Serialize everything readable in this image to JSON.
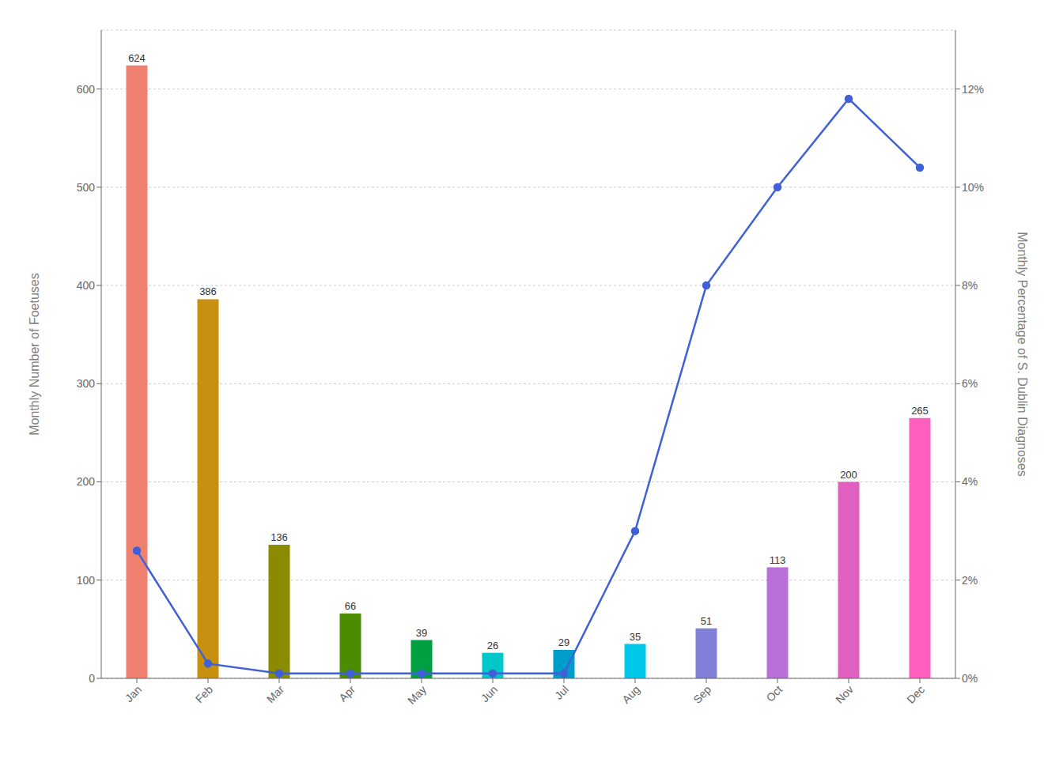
{
  "chart_data": {
    "type": "bar",
    "categories": [
      "Jan",
      "Feb",
      "Mar",
      "Apr",
      "May",
      "Jun",
      "Jul",
      "Aug",
      "Sep",
      "Oct",
      "Nov",
      "Dec"
    ],
    "ylabel": "Monthly Number of Foetuses",
    "y2label": "Monthly Percentage of S. Dublin Diagnoses",
    "ylim": [
      0,
      660
    ],
    "yticks": [
      0,
      100,
      200,
      300,
      400,
      500,
      600
    ],
    "y2lim": [
      0,
      0.132
    ],
    "y2ticks": [
      {
        "value": 0,
        "label": "0%"
      },
      {
        "value": 0.02,
        "label": "2%"
      },
      {
        "value": 0.04,
        "label": "4%"
      },
      {
        "value": 0.06,
        "label": "6%"
      },
      {
        "value": 0.08,
        "label": "8%"
      },
      {
        "value": 0.1,
        "label": "10%"
      },
      {
        "value": 0.12,
        "label": "12%"
      }
    ],
    "grid": true,
    "series": [
      {
        "type": "bar",
        "values": [
          624,
          386,
          136,
          66,
          39,
          26,
          29,
          35,
          51,
          113,
          200,
          265
        ],
        "colors": [
          "#F08070",
          "#C89010",
          "#8B8B00",
          "#4C8C00",
          "#00A040",
          "#00C8C8",
          "#009DC8",
          "#00C8E8",
          "#8080D8",
          "#B870D8",
          "#E060C0",
          "#FF60C0"
        ],
        "data_labels": true
      },
      {
        "type": "line",
        "axis": "y2",
        "values": [
          0.026,
          0.003,
          0.001,
          0.001,
          0.001,
          0.001,
          0.001,
          0.03,
          0.08,
          0.1,
          0.118,
          0.104
        ],
        "color": "#4060D8",
        "marker": "circle"
      }
    ]
  }
}
